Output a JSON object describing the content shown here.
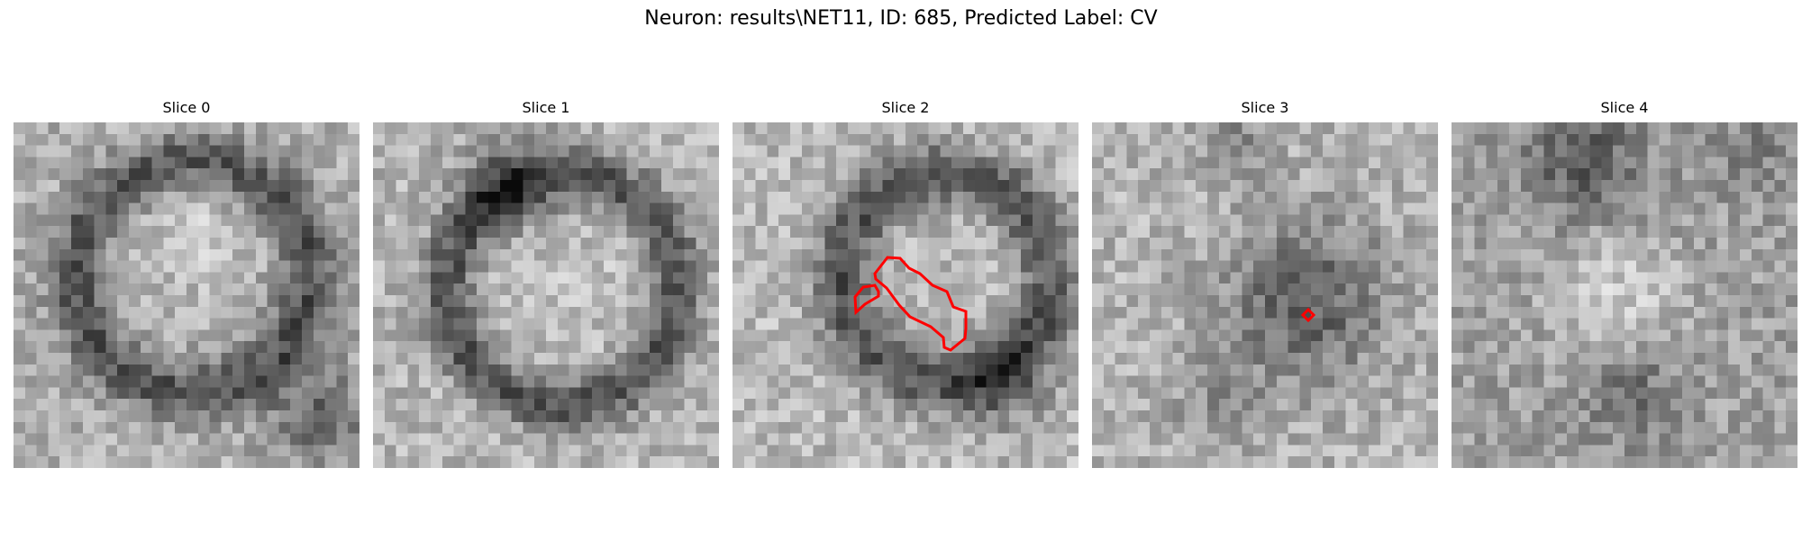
{
  "figure": {
    "title": "Neuron: results\\NET11, ID: 685, Predicted Label: CV"
  },
  "slices": [
    {
      "label": "Slice 0"
    },
    {
      "label": "Slice 1"
    },
    {
      "label": "Slice 2"
    },
    {
      "label": "Slice 3"
    },
    {
      "label": "Slice 4"
    }
  ],
  "overlay": {
    "contour_color": "#ff0000"
  }
}
